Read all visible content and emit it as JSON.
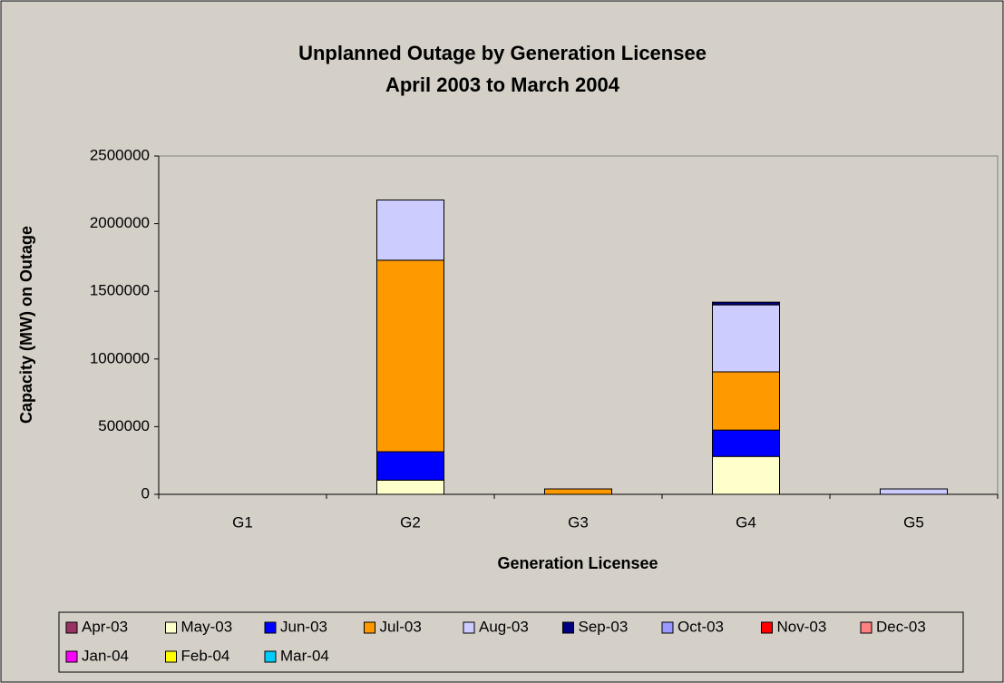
{
  "chart_data": {
    "type": "stacked_bar",
    "title": "Unplanned Outage by Generation Licensee",
    "subtitle": "April 2003 to March 2004",
    "x_label": "Generation Licensee",
    "y_label": "Capacity (MW) on Outage",
    "categories": [
      "G1",
      "G2",
      "G3",
      "G4",
      "G5"
    ],
    "series": [
      {
        "name": "Apr-03",
        "color": "#993366",
        "values": [
          0,
          0,
          0,
          0,
          0
        ]
      },
      {
        "name": "May-03",
        "color": "#FFFFCC",
        "values": [
          0,
          105000,
          0,
          280000,
          0
        ]
      },
      {
        "name": "Jun-03",
        "color": "#0000FF",
        "values": [
          0,
          210000,
          0,
          195000,
          0
        ]
      },
      {
        "name": "Jul-03",
        "color": "#FF9900",
        "values": [
          0,
          1415000,
          40000,
          430000,
          0
        ]
      },
      {
        "name": "Aug-03",
        "color": "#CCCCFF",
        "values": [
          0,
          445000,
          0,
          495000,
          40000
        ]
      },
      {
        "name": "Sep-03",
        "color": "#000080",
        "values": [
          0,
          0,
          0,
          20000,
          0
        ]
      },
      {
        "name": "Oct-03",
        "color": "#9999FF",
        "values": [
          0,
          0,
          0,
          0,
          0
        ]
      },
      {
        "name": "Nov-03",
        "color": "#FF0000",
        "values": [
          0,
          0,
          0,
          0,
          0
        ]
      },
      {
        "name": "Dec-03",
        "color": "#FF8080",
        "values": [
          0,
          0,
          0,
          0,
          0
        ]
      },
      {
        "name": "Jan-04",
        "color": "#FF00FF",
        "values": [
          0,
          0,
          0,
          0,
          0
        ]
      },
      {
        "name": "Feb-04",
        "color": "#FFFF00",
        "values": [
          0,
          0,
          0,
          0,
          0
        ]
      },
      {
        "name": "Mar-04",
        "color": "#00CCFF",
        "values": [
          0,
          0,
          0,
          0,
          0
        ]
      }
    ],
    "ylim": [
      0,
      2500000
    ],
    "yticks": [
      0,
      500000,
      1000000,
      1500000,
      2000000,
      2500000
    ],
    "legend": "bottom"
  }
}
